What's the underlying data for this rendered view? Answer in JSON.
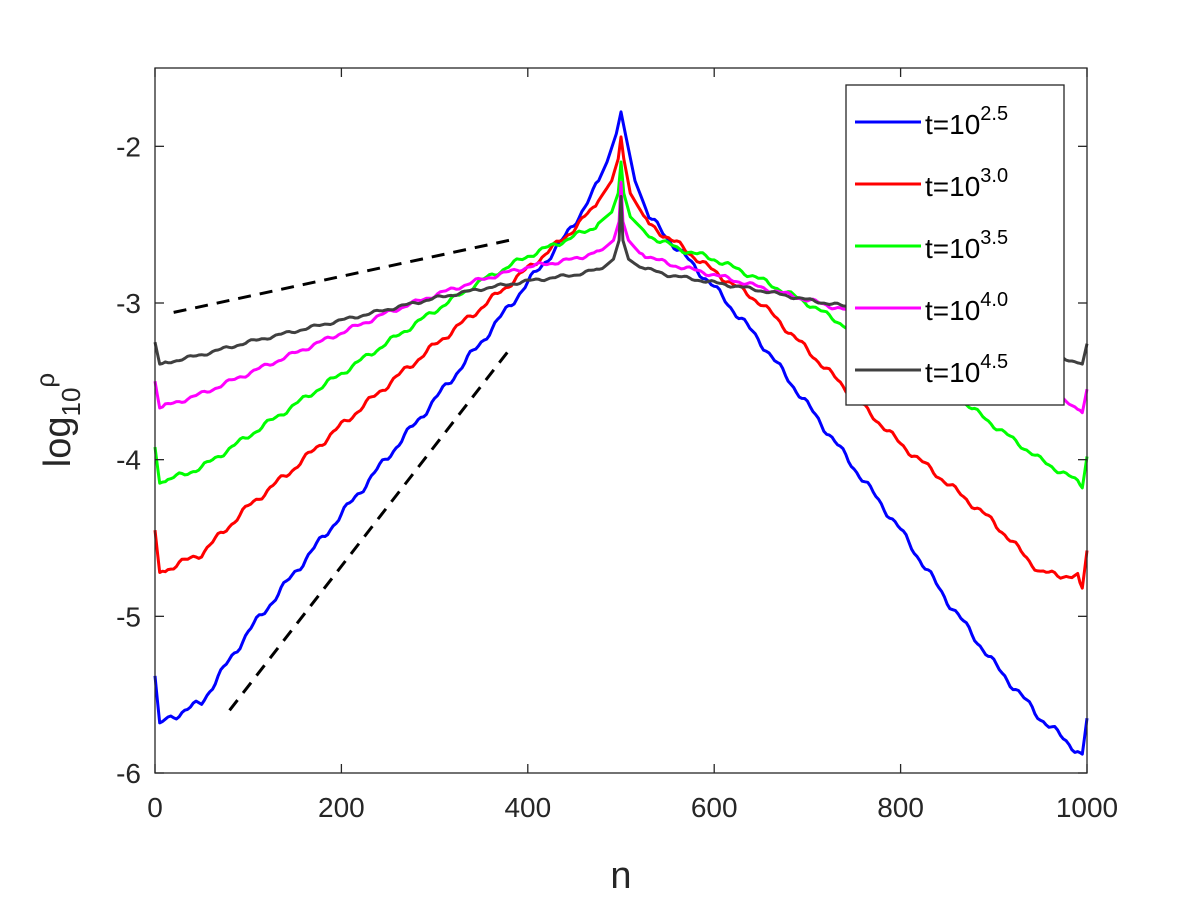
{
  "chart_data": {
    "type": "line",
    "title": "",
    "xlabel": "n",
    "ylabel": {
      "base": "log",
      "sub": "10",
      "sup": "ρ"
    },
    "xlim": [
      0,
      1000
    ],
    "ylim": [
      -6,
      -1.5
    ],
    "xticks": [
      0,
      200,
      400,
      600,
      800,
      1000
    ],
    "xtick_labels": [
      "0",
      "200",
      "400",
      "600",
      "800",
      "1000"
    ],
    "yticks": [
      -6,
      -5,
      -4,
      -3,
      -2
    ],
    "ytick_labels": [
      "-6",
      "-5",
      "-4",
      "-3",
      "-2"
    ],
    "grid": false,
    "legend_position": "top-right",
    "series": [
      {
        "name": "t=10^2.5",
        "label_base": "t=10",
        "label_exp": "2.5",
        "color": "#0000ff",
        "x": [
          0,
          5,
          50,
          100,
          150,
          200,
          250,
          300,
          350,
          400,
          440,
          470,
          485,
          495,
          500,
          505,
          515,
          530,
          560,
          600,
          650,
          700,
          750,
          800,
          850,
          900,
          950,
          990,
          995,
          1000
        ],
        "y": [
          -5.38,
          -5.68,
          -5.55,
          -5.1,
          -4.72,
          -4.35,
          -3.98,
          -3.62,
          -3.25,
          -2.87,
          -2.58,
          -2.3,
          -2.1,
          -1.92,
          -1.78,
          -1.93,
          -2.22,
          -2.45,
          -2.65,
          -2.9,
          -3.25,
          -3.65,
          -4.05,
          -4.45,
          -4.9,
          -5.3,
          -5.65,
          -5.86,
          -5.88,
          -5.65
        ]
      },
      {
        "name": "t=10^3.0",
        "label_base": "t=10",
        "label_exp": "3.0",
        "color": "#ff0000",
        "x": [
          0,
          5,
          50,
          100,
          150,
          200,
          250,
          300,
          350,
          400,
          440,
          470,
          490,
          497,
          500,
          503,
          510,
          530,
          560,
          600,
          650,
          700,
          750,
          800,
          850,
          900,
          950,
          990,
          995,
          1000
        ],
        "y": [
          -4.45,
          -4.72,
          -4.6,
          -4.3,
          -4.05,
          -3.78,
          -3.52,
          -3.27,
          -3.03,
          -2.78,
          -2.58,
          -2.4,
          -2.22,
          -2.08,
          -1.94,
          -2.08,
          -2.3,
          -2.5,
          -2.62,
          -2.8,
          -3.0,
          -3.3,
          -3.6,
          -3.9,
          -4.15,
          -4.4,
          -4.72,
          -4.75,
          -4.82,
          -4.58
        ]
      },
      {
        "name": "t=10^3.5",
        "label_base": "t=10",
        "label_exp": "3.5",
        "color": "#00ff00",
        "x": [
          0,
          5,
          50,
          100,
          150,
          200,
          250,
          300,
          350,
          400,
          440,
          470,
          490,
          497,
          500,
          503,
          510,
          530,
          560,
          600,
          650,
          700,
          750,
          800,
          850,
          900,
          950,
          990,
          995,
          1000
        ],
        "y": [
          -3.92,
          -4.15,
          -4.05,
          -3.85,
          -3.65,
          -3.45,
          -3.25,
          -3.05,
          -2.86,
          -2.7,
          -2.6,
          -2.52,
          -2.42,
          -2.3,
          -2.1,
          -2.3,
          -2.45,
          -2.57,
          -2.65,
          -2.72,
          -2.85,
          -3.0,
          -3.18,
          -3.36,
          -3.55,
          -3.78,
          -4.0,
          -4.14,
          -4.18,
          -3.98
        ]
      },
      {
        "name": "t=10^4.0",
        "label_base": "t=10",
        "label_exp": "4.0",
        "color": "#ff00ff",
        "x": [
          0,
          5,
          50,
          100,
          150,
          200,
          250,
          300,
          350,
          400,
          450,
          480,
          492,
          498,
          500,
          502,
          508,
          520,
          550,
          600,
          650,
          700,
          750,
          800,
          850,
          900,
          950,
          990,
          995,
          1000
        ],
        "y": [
          -3.5,
          -3.67,
          -3.58,
          -3.45,
          -3.32,
          -3.19,
          -3.06,
          -2.95,
          -2.85,
          -2.77,
          -2.72,
          -2.66,
          -2.6,
          -2.48,
          -2.23,
          -2.48,
          -2.6,
          -2.68,
          -2.75,
          -2.82,
          -2.9,
          -2.98,
          -3.06,
          -3.14,
          -3.25,
          -3.38,
          -3.55,
          -3.67,
          -3.7,
          -3.55
        ]
      },
      {
        "name": "t=10^4.5",
        "label_base": "t=10",
        "label_exp": "4.5",
        "color": "#404040",
        "x": [
          0,
          5,
          50,
          100,
          150,
          200,
          250,
          300,
          350,
          400,
          450,
          480,
          492,
          498,
          500,
          502,
          508,
          520,
          550,
          600,
          650,
          700,
          750,
          800,
          850,
          900,
          950,
          990,
          995,
          1000
        ],
        "y": [
          -3.25,
          -3.39,
          -3.33,
          -3.25,
          -3.18,
          -3.11,
          -3.04,
          -2.97,
          -2.91,
          -2.86,
          -2.82,
          -2.78,
          -2.72,
          -2.6,
          -2.32,
          -2.6,
          -2.72,
          -2.77,
          -2.82,
          -2.87,
          -2.92,
          -2.98,
          -3.03,
          -3.08,
          -3.14,
          -3.22,
          -3.3,
          -3.38,
          -3.39,
          -3.26
        ]
      }
    ],
    "reference_lines": [
      {
        "name": "shallow-slope",
        "style": "dashed",
        "color": "#000000",
        "x": [
          20,
          380
        ],
        "y": [
          -3.06,
          -2.6
        ]
      },
      {
        "name": "steep-slope",
        "style": "dashed",
        "color": "#000000",
        "x": [
          80,
          380
        ],
        "y": [
          -5.6,
          -3.3
        ]
      }
    ]
  }
}
